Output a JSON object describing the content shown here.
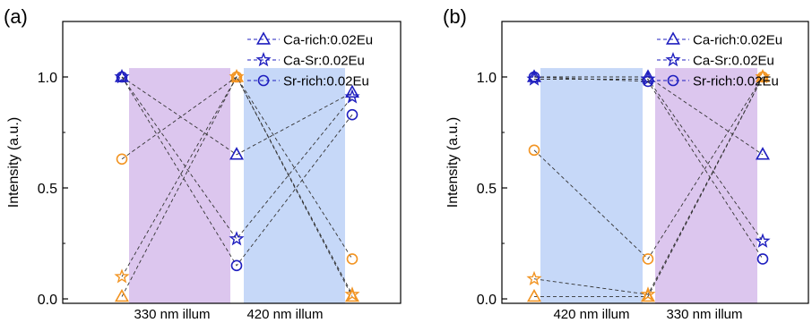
{
  "colors": {
    "blue": "#1f1fbf",
    "orange": "#f29422",
    "purple_band": "#dcc6ee",
    "blue_band": "#c6d8f8"
  },
  "chart_data": [
    {
      "panel": "(a)",
      "type": "line",
      "x": [
        0,
        1,
        2
      ],
      "band_labels": [
        "330 nm illum",
        "420 nm illum"
      ],
      "band_colors": [
        "purple_band",
        "blue_band"
      ],
      "ylabel": "Intensity (a.u.)",
      "ylim": [
        -0.02,
        1.25
      ],
      "yticks": [
        "0.0",
        "0.5",
        "1.0"
      ],
      "yticks_values": [
        0,
        0.5,
        1.0
      ],
      "legend": [
        "Ca-rich:0.02Eu",
        "Ca-Sr:0.02Eu",
        "Sr-rich:0.02Eu"
      ],
      "markers": [
        "triangle",
        "star",
        "circle"
      ],
      "series": [
        {
          "name": "Ca-rich:0.02Eu",
          "color": "blue",
          "marker": "triangle",
          "values": [
            1.0,
            0.65,
            0.93
          ]
        },
        {
          "name": "Ca-Sr:0.02Eu",
          "color": "blue",
          "marker": "star",
          "values": [
            1.0,
            0.27,
            0.91
          ]
        },
        {
          "name": "Sr-rich:0.02Eu",
          "color": "blue",
          "marker": "circle",
          "values": [
            1.0,
            0.15,
            0.83
          ]
        },
        {
          "name": "Ca-rich:0.02Eu",
          "color": "orange",
          "marker": "triangle",
          "values": [
            0.01,
            1.0,
            0.01
          ]
        },
        {
          "name": "Ca-Sr:0.02Eu",
          "color": "orange",
          "marker": "star",
          "values": [
            0.1,
            1.0,
            0.02
          ]
        },
        {
          "name": "Sr-rich:0.02Eu",
          "color": "orange",
          "marker": "circle",
          "values": [
            0.63,
            1.0,
            0.18
          ]
        }
      ]
    },
    {
      "panel": "(b)",
      "type": "line",
      "x": [
        0,
        1,
        2
      ],
      "band_labels": [
        "420 nm illum",
        "330 nm illum"
      ],
      "band_colors": [
        "blue_band",
        "purple_band"
      ],
      "ylabel": "Intensity (a.u.)",
      "ylim": [
        -0.02,
        1.25
      ],
      "yticks": [
        "0.0",
        "0.5",
        "1.0"
      ],
      "yticks_values": [
        0,
        0.5,
        1.0
      ],
      "legend": [
        "Ca-rich:0.02Eu",
        "Ca-Sr:0.02Eu",
        "Sr-rich:0.02Eu"
      ],
      "markers": [
        "triangle",
        "star",
        "circle"
      ],
      "series": [
        {
          "name": "Ca-rich:0.02Eu",
          "color": "blue",
          "marker": "triangle",
          "values": [
            1.0,
            1.0,
            0.65
          ]
        },
        {
          "name": "Ca-Sr:0.02Eu",
          "color": "blue",
          "marker": "star",
          "values": [
            0.99,
            0.99,
            0.26
          ]
        },
        {
          "name": "Sr-rich:0.02Eu",
          "color": "blue",
          "marker": "circle",
          "values": [
            1.0,
            0.98,
            0.18
          ]
        },
        {
          "name": "Ca-rich:0.02Eu",
          "color": "orange",
          "marker": "triangle",
          "values": [
            0.01,
            0.01,
            1.0
          ]
        },
        {
          "name": "Ca-Sr:0.02Eu",
          "color": "orange",
          "marker": "star",
          "values": [
            0.09,
            0.02,
            1.0
          ]
        },
        {
          "name": "Sr-rich:0.02Eu",
          "color": "orange",
          "marker": "circle",
          "values": [
            0.67,
            0.18,
            1.0
          ]
        }
      ]
    }
  ]
}
